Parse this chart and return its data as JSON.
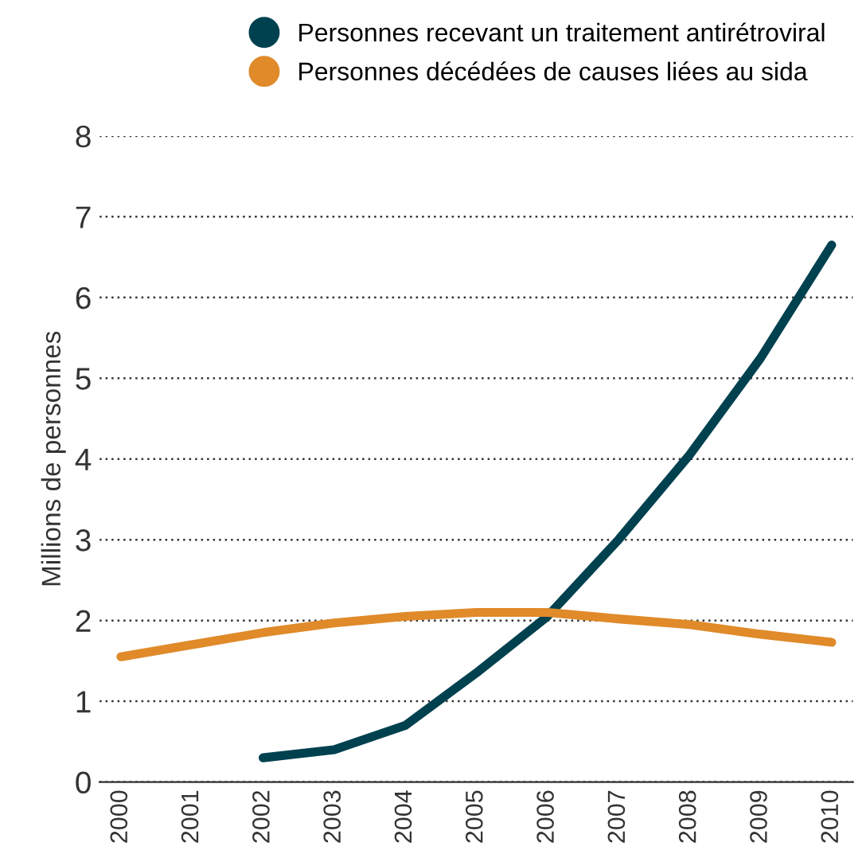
{
  "chart_data": {
    "type": "line",
    "ylabel": "Millions de personnes",
    "categories": [
      "2000",
      "2001",
      "2002",
      "2003",
      "2004",
      "2005",
      "2006",
      "2007",
      "2008",
      "2009",
      "2010"
    ],
    "series": [
      {
        "name": "Personnes recevant un traitement antirétroviral",
        "color": "#004150",
        "values": [
          null,
          null,
          0.3,
          0.4,
          0.7,
          1.35,
          2.05,
          3.0,
          4.05,
          5.25,
          6.65
        ]
      },
      {
        "name": "Personnes décédées de causes liées au sida",
        "color": "#e08a2a",
        "values": [
          1.55,
          1.7,
          1.85,
          1.97,
          2.05,
          2.1,
          2.1,
          2.02,
          1.95,
          1.83,
          1.73
        ]
      }
    ],
    "ylim": [
      0,
      8
    ],
    "yticks": [
      0,
      1,
      2,
      3,
      4,
      5,
      6,
      7,
      8
    ],
    "grid": "y",
    "legend": "top right"
  }
}
